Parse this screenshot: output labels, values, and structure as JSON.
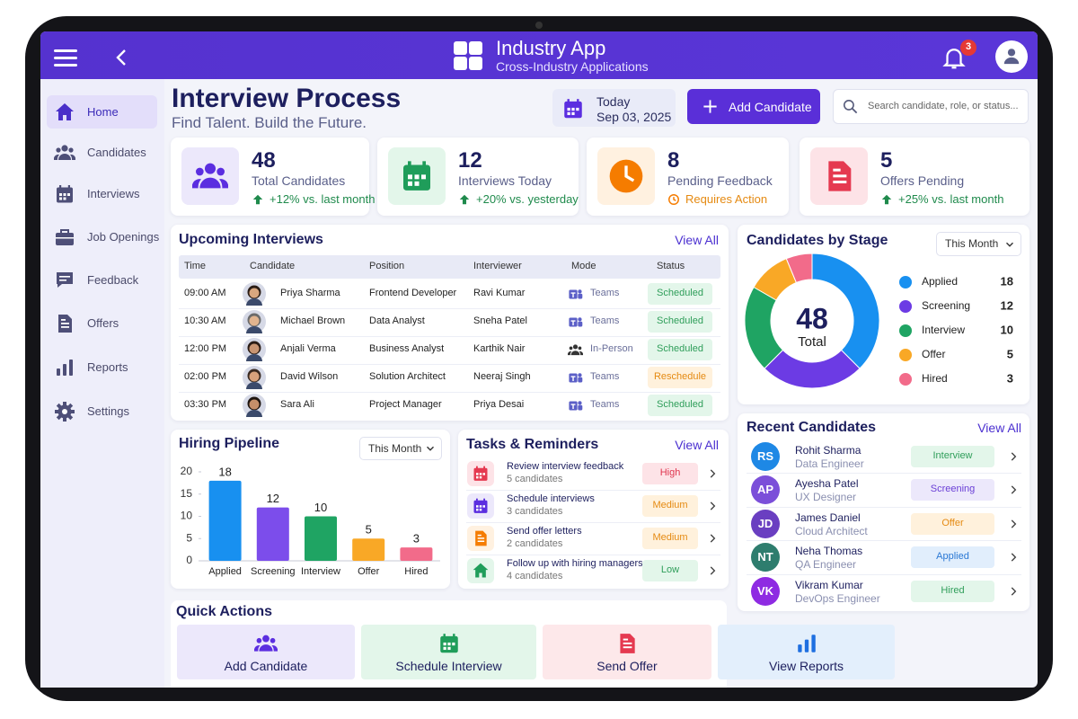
{
  "header": {
    "title": "Industry App",
    "subtitle": "Cross-Industry Applications",
    "notifications": 3
  },
  "sidebar": {
    "items": [
      "Home",
      "Candidates",
      "Interviews",
      "Job Openings",
      "Feedback",
      "Offers",
      "Reports",
      "Settings"
    ]
  },
  "page": {
    "title": "Interview Process",
    "subtitle": "Find Talent. Build the Future.",
    "date_label": "Today",
    "date": "Sep 03, 2025",
    "add_button": "Add Candidate",
    "search_placeholder": "Search candidate, role, or status..."
  },
  "stats": [
    {
      "value": 48,
      "label": "Total Candidates",
      "note": "+12% vs. last month"
    },
    {
      "value": 12,
      "label": "Interviews Today",
      "note": "+20% vs. yesterday"
    },
    {
      "value": 8,
      "label": "Pending Feedback",
      "note": "Requires Action"
    },
    {
      "value": 5,
      "label": "Offers Pending",
      "note": "+25% vs. last month"
    }
  ],
  "interviews": {
    "title": "Upcoming Interviews",
    "view_all": "View All",
    "columns": [
      "Time",
      "Candidate",
      "Position",
      "Interviewer",
      "Mode",
      "Status"
    ],
    "rows": [
      [
        "09:00 AM",
        "Priya Sharma",
        "Frontend Developer",
        "Ravi Kumar",
        "Teams",
        "Scheduled"
      ],
      [
        "10:30 AM",
        "Michael Brown",
        "Data Analyst",
        "Sneha Patel",
        "Teams",
        "Scheduled"
      ],
      [
        "12:00 PM",
        "Anjali Verma",
        "Business Analyst",
        "Karthik Nair",
        "In-Person",
        "Scheduled"
      ],
      [
        "02:00 PM",
        "David Wilson",
        "Solution Architect",
        "Neeraj Singh",
        "Teams",
        "Reschedule"
      ],
      [
        "03:30 PM",
        "Sara Ali",
        "Project Manager",
        "Priya Desai",
        "Teams",
        "Scheduled"
      ]
    ]
  },
  "tasks": {
    "title": "Tasks & Reminders",
    "view_all": "View All",
    "items": [
      {
        "title": "Review interview feedback",
        "detail": "5 candidates",
        "priority": "High"
      },
      {
        "title": "Schedule interviews",
        "detail": "3 candidates",
        "priority": "Medium"
      },
      {
        "title": "Send offer letters",
        "detail": "2 candidates",
        "priority": "Medium"
      },
      {
        "title": "Follow up with hiring managers",
        "detail": "4 candidates",
        "priority": "Low"
      }
    ]
  },
  "recent": {
    "title": "Recent Candidates",
    "view_all": "View All",
    "items": [
      {
        "initials": "RS",
        "name": "Rohit Sharma",
        "role": "Data Engineer",
        "stage": "Interview"
      },
      {
        "initials": "AP",
        "name": "Ayesha Patel",
        "role": "UX Designer",
        "stage": "Screening"
      },
      {
        "initials": "JD",
        "name": "James Daniel",
        "role": "Cloud Architect",
        "stage": "Offer"
      },
      {
        "initials": "NT",
        "name": "Neha Thomas",
        "role": "QA Engineer",
        "stage": "Applied"
      },
      {
        "initials": "VK",
        "name": "Vikram Kumar",
        "role": "DevOps Engineer",
        "stage": "Hired"
      }
    ]
  },
  "quick_actions": {
    "title": "Quick Actions",
    "items": [
      "Add Candidate",
      "Schedule Interview",
      "Send Offer",
      "View Reports"
    ]
  },
  "chart_data": [
    {
      "type": "bar",
      "title": "Hiring Pipeline",
      "filter": "This Month",
      "categories": [
        "Applied",
        "Screening",
        "Interview",
        "Offer",
        "Hired"
      ],
      "values": [
        18,
        12,
        10,
        5,
        3
      ],
      "colors": [
        "#1890f0",
        "#7c4deb",
        "#1fa463",
        "#f9a826",
        "#f26b8a"
      ],
      "ylim": [
        0,
        20
      ],
      "yticks": [
        0,
        5,
        10,
        15,
        20
      ]
    },
    {
      "type": "pie",
      "title": "Candidates by Stage",
      "filter": "This Month",
      "total": 48,
      "total_label": "Total",
      "categories": [
        "Applied",
        "Screening",
        "Interview",
        "Offer",
        "Hired"
      ],
      "values": [
        18,
        12,
        10,
        5,
        3
      ],
      "colors": [
        "#1890f0",
        "#6c3be4",
        "#1fa463",
        "#f9a826",
        "#f26b8a"
      ]
    }
  ]
}
